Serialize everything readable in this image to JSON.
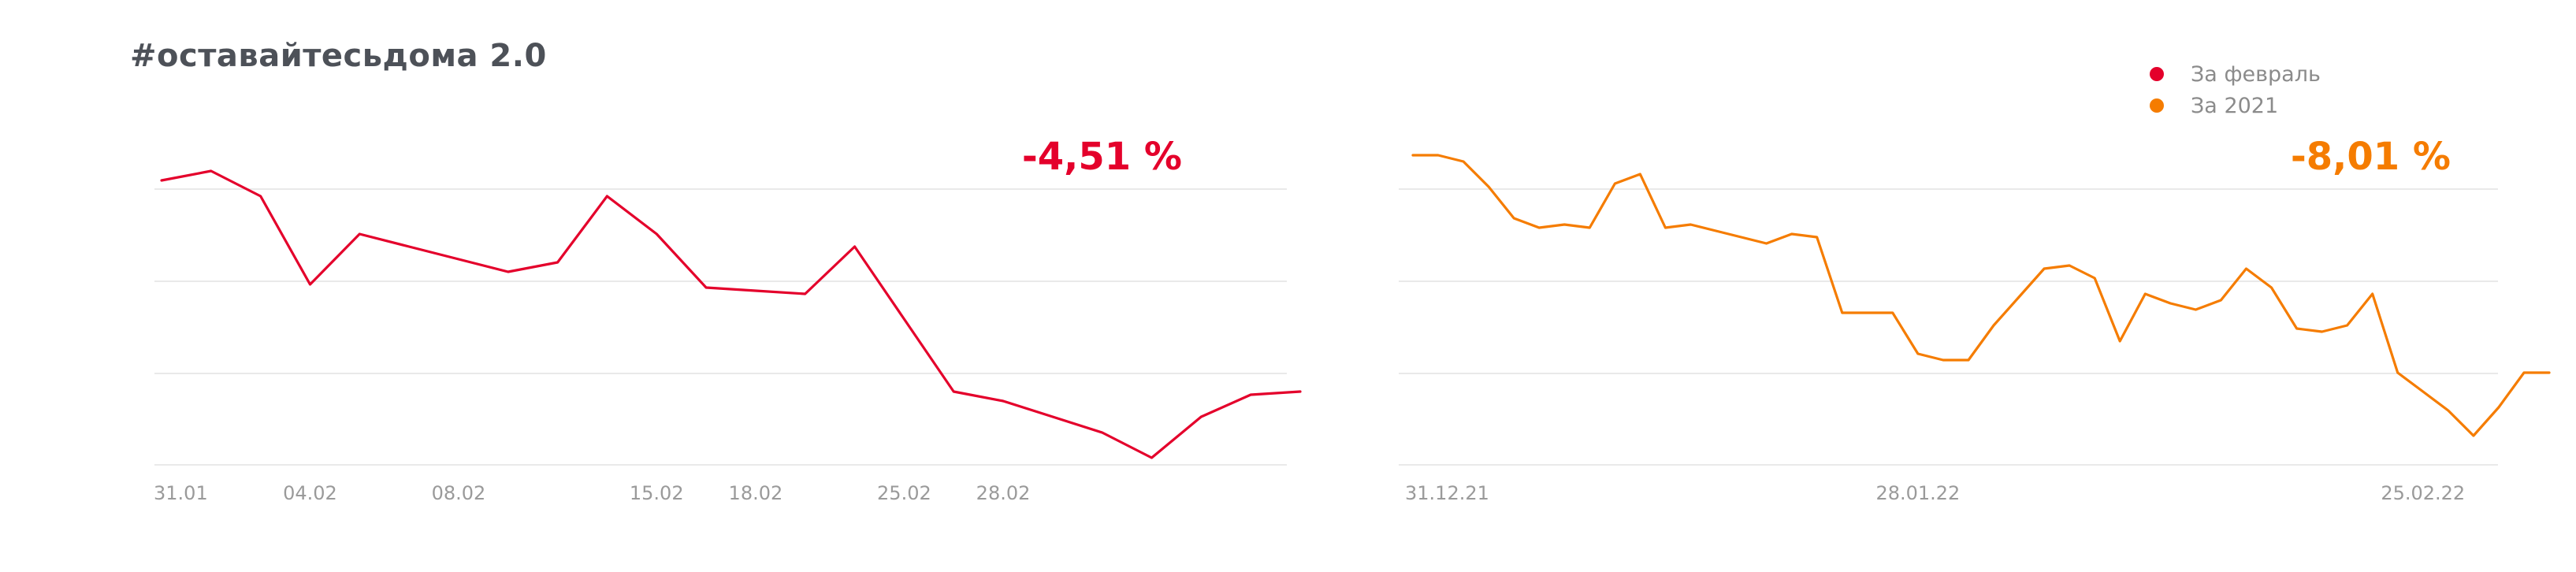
{
  "title": "#оставайтесьдома 2.0",
  "legend": [
    {
      "label": "За февраль",
      "color": "#e4002b"
    },
    {
      "label": "За 2021",
      "color": "#f57c00"
    }
  ],
  "chart_data": [
    {
      "type": "line",
      "color": "#e4002b",
      "delta_label": "-4,51 %",
      "x_ticks": [
        "31.01",
        "04.02",
        "08.02",
        "15.02",
        "18.02",
        "25.02",
        "28.02"
      ],
      "x_tick_index": [
        0,
        3,
        6,
        10,
        12,
        15,
        17
      ],
      "y_range": [
        0,
        100
      ],
      "values": [
        89,
        92,
        84,
        56,
        72,
        68,
        64,
        60,
        63,
        84,
        72,
        55,
        54,
        53,
        68,
        45,
        22,
        19,
        14,
        9,
        1,
        14,
        21,
        22
      ]
    },
    {
      "type": "line",
      "color": "#f57c00",
      "delta_label": "-8,01 %",
      "x_ticks": [
        "31.12.21",
        "28.01.22",
        "25.02.22"
      ],
      "x_tick_index": [
        0,
        20,
        40
      ],
      "y_range": [
        0,
        100
      ],
      "values": [
        97,
        97,
        95,
        87,
        77,
        74,
        75,
        74,
        88,
        91,
        74,
        75,
        73,
        71,
        69,
        72,
        71,
        47,
        47,
        47,
        34,
        32,
        32,
        43,
        52,
        61,
        62,
        58,
        38,
        53,
        50,
        48,
        51,
        61,
        55,
        42,
        41,
        43,
        53,
        28,
        22,
        16,
        8,
        17,
        28,
        28
      ]
    }
  ]
}
